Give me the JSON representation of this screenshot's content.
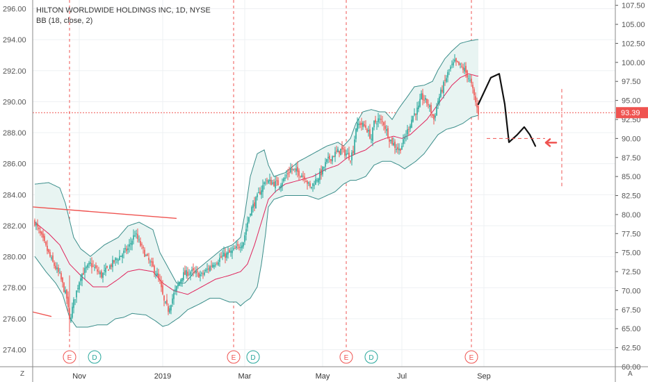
{
  "chart_data": {
    "type": "candlestick",
    "title": "HILTON WORLDWIDE HOLDINGS INC, 1D, NYSE",
    "indicator": "BB (18, close, 2)",
    "left_axis": {
      "range": [
        273.0,
        297.0
      ],
      "ticks": [
        "296.00",
        "294.00",
        "292.00",
        "290.00",
        "288.00",
        "286.00",
        "284.00",
        "282.00",
        "280.00",
        "278.00",
        "276.00",
        "274.00"
      ]
    },
    "right_axis": {
      "range": [
        60.0,
        108.2
      ],
      "ticks": [
        "107.50",
        "105.00",
        "102.50",
        "100.00",
        "97.50",
        "95.00",
        "92.50",
        "90.00",
        "87.50",
        "85.00",
        "82.50",
        "80.00",
        "77.50",
        "75.00",
        "72.50",
        "70.00",
        "67.50",
        "65.00",
        "62.50",
        "60.00"
      ]
    },
    "price_label": "93.39",
    "x_ticks": [
      "Nov",
      "2019",
      "Mar",
      "May",
      "Jul",
      "Sep"
    ],
    "events": [
      "E",
      "D",
      "E",
      "D",
      "E",
      "D",
      "E"
    ],
    "corner_left": "Z",
    "corner_right": "A",
    "price_anchors": [
      [
        0,
        79.0
      ],
      [
        5,
        77.0
      ],
      [
        12,
        74.0
      ],
      [
        18,
        72.0
      ],
      [
        23,
        69.0
      ],
      [
        25,
        66.0
      ],
      [
        28,
        68.5
      ],
      [
        33,
        72.0
      ],
      [
        40,
        73.5
      ],
      [
        48,
        72.0
      ],
      [
        58,
        74.0
      ],
      [
        67,
        75.5
      ],
      [
        72,
        77.5
      ],
      [
        80,
        74.5
      ],
      [
        85,
        73.0
      ],
      [
        88,
        72.0
      ],
      [
        90,
        71.0
      ],
      [
        93,
        68.5
      ],
      [
        96,
        67.5
      ],
      [
        100,
        69.5
      ],
      [
        106,
        72.0
      ],
      [
        112,
        72.5
      ],
      [
        120,
        72.0
      ],
      [
        128,
        73.5
      ],
      [
        135,
        74.5
      ],
      [
        141,
        75.0
      ],
      [
        145,
        75.5
      ],
      [
        150,
        76.5
      ],
      [
        153,
        79.0
      ],
      [
        155,
        80.5
      ],
      [
        158,
        81.5
      ],
      [
        162,
        83.0
      ],
      [
        166,
        84.5
      ],
      [
        170,
        84.2
      ],
      [
        176,
        84.0
      ],
      [
        180,
        84.8
      ],
      [
        184,
        86.0
      ],
      [
        190,
        85.5
      ],
      [
        194,
        85.0
      ],
      [
        198,
        83.5
      ],
      [
        202,
        84.5
      ],
      [
        206,
        85.5
      ],
      [
        210,
        87.0
      ],
      [
        216,
        88.0
      ],
      [
        220,
        88.5
      ],
      [
        224,
        88.0
      ],
      [
        227,
        87.5
      ],
      [
        229,
        88.5
      ],
      [
        231,
        91.5
      ],
      [
        234,
        92.0
      ],
      [
        238,
        91.5
      ],
      [
        242,
        90.0
      ],
      [
        244,
        92.0
      ],
      [
        247,
        92.5
      ],
      [
        251,
        92.0
      ],
      [
        255,
        90.0
      ],
      [
        259,
        89.0
      ],
      [
        262,
        88.5
      ],
      [
        265,
        89.5
      ],
      [
        269,
        91.5
      ],
      [
        272,
        93.0
      ],
      [
        276,
        94.0
      ],
      [
        278,
        95.5
      ],
      [
        283,
        94.5
      ],
      [
        287,
        92.5
      ],
      [
        290,
        95.0
      ],
      [
        294,
        97.0
      ],
      [
        298,
        99.0
      ],
      [
        302,
        100.0
      ],
      [
        306,
        99.5
      ],
      [
        309,
        99.0
      ],
      [
        312,
        98.0
      ],
      [
        314,
        97.0
      ],
      [
        316,
        95.5
      ],
      [
        318,
        94.0
      ],
      [
        319,
        93.39
      ]
    ],
    "bb_upper": [
      [
        0,
        84.0
      ],
      [
        10,
        84.2
      ],
      [
        18,
        83.5
      ],
      [
        22,
        81.5
      ],
      [
        28,
        77.0
      ],
      [
        33,
        75.5
      ],
      [
        40,
        74.5
      ],
      [
        50,
        76.0
      ],
      [
        60,
        77.0
      ],
      [
        67,
        78.5
      ],
      [
        75,
        79.0
      ],
      [
        85,
        78.0
      ],
      [
        90,
        75.0
      ],
      [
        96,
        73.0
      ],
      [
        102,
        71.0
      ],
      [
        108,
        71.0
      ],
      [
        115,
        72.5
      ],
      [
        125,
        74.0
      ],
      [
        135,
        75.5
      ],
      [
        142,
        76.0
      ],
      [
        148,
        77.0
      ],
      [
        151,
        80.0
      ],
      [
        155,
        85.0
      ],
      [
        160,
        88.0
      ],
      [
        165,
        88.5
      ],
      [
        168,
        86.5
      ],
      [
        172,
        85.0
      ],
      [
        180,
        85.5
      ],
      [
        190,
        87.0
      ],
      [
        200,
        88.0
      ],
      [
        210,
        89.0
      ],
      [
        218,
        89.5
      ],
      [
        222,
        89.0
      ],
      [
        227,
        90.0
      ],
      [
        231,
        92.0
      ],
      [
        236,
        93.5
      ],
      [
        242,
        93.8
      ],
      [
        248,
        93.5
      ],
      [
        252,
        93.5
      ],
      [
        257,
        92.5
      ],
      [
        262,
        94.0
      ],
      [
        268,
        95.5
      ],
      [
        273,
        96.8
      ],
      [
        280,
        97.0
      ],
      [
        286,
        97.5
      ],
      [
        290,
        99.0
      ],
      [
        295,
        100.5
      ],
      [
        300,
        101.5
      ],
      [
        306,
        102.5
      ],
      [
        312,
        102.8
      ],
      [
        318,
        103.0
      ]
    ],
    "bb_lower": [
      [
        0,
        74.5
      ],
      [
        8,
        72.5
      ],
      [
        15,
        71.0
      ],
      [
        20,
        69.5
      ],
      [
        25,
        66.5
      ],
      [
        30,
        65.2
      ],
      [
        38,
        65.2
      ],
      [
        45,
        65.5
      ],
      [
        52,
        65.5
      ],
      [
        58,
        66.3
      ],
      [
        64,
        66.5
      ],
      [
        70,
        67.0
      ],
      [
        80,
        66.8
      ],
      [
        87,
        66.0
      ],
      [
        92,
        65.3
      ],
      [
        96,
        65.5
      ],
      [
        104,
        66.5
      ],
      [
        110,
        67.5
      ],
      [
        118,
        68.2
      ],
      [
        126,
        69.0
      ],
      [
        133,
        69.0
      ],
      [
        140,
        68.5
      ],
      [
        145,
        68.5
      ],
      [
        148,
        68.0
      ],
      [
        151,
        68.5
      ],
      [
        155,
        69.0
      ],
      [
        160,
        70.5
      ],
      [
        163,
        73.5
      ],
      [
        166,
        77.5
      ],
      [
        168,
        81.0
      ],
      [
        172,
        82.0
      ],
      [
        180,
        82.5
      ],
      [
        188,
        82.5
      ],
      [
        196,
        82.5
      ],
      [
        204,
        82.0
      ],
      [
        210,
        82.5
      ],
      [
        216,
        83.0
      ],
      [
        222,
        84.0
      ],
      [
        227,
        84.5
      ],
      [
        231,
        84.5
      ],
      [
        238,
        85.0
      ],
      [
        244,
        86.5
      ],
      [
        250,
        87.0
      ],
      [
        256,
        87.0
      ],
      [
        262,
        86.5
      ],
      [
        266,
        86.0
      ],
      [
        270,
        86.5
      ],
      [
        274,
        87.0
      ],
      [
        280,
        88.0
      ],
      [
        286,
        89.5
      ],
      [
        290,
        90.5
      ],
      [
        296,
        91.2
      ],
      [
        302,
        91.5
      ],
      [
        308,
        92.0
      ],
      [
        314,
        92.8
      ],
      [
        318,
        93.0
      ]
    ],
    "bb_middle": [
      [
        0,
        79.0
      ],
      [
        10,
        77.5
      ],
      [
        18,
        76.0
      ],
      [
        25,
        73.5
      ],
      [
        33,
        72.0
      ],
      [
        42,
        70.5
      ],
      [
        52,
        70.5
      ],
      [
        60,
        71.5
      ],
      [
        67,
        72.5
      ],
      [
        75,
        72.8
      ],
      [
        85,
        72.5
      ],
      [
        92,
        71.0
      ],
      [
        100,
        70.0
      ],
      [
        110,
        69.5
      ],
      [
        120,
        70.5
      ],
      [
        130,
        71.5
      ],
      [
        140,
        72.0
      ],
      [
        148,
        72.5
      ],
      [
        153,
        73.5
      ],
      [
        158,
        76.0
      ],
      [
        163,
        79.0
      ],
      [
        168,
        82.0
      ],
      [
        173,
        83.0
      ],
      [
        180,
        84.0
      ],
      [
        190,
        84.5
      ],
      [
        200,
        85.0
      ],
      [
        210,
        86.0
      ],
      [
        218,
        86.5
      ],
      [
        225,
        87.5
      ],
      [
        231,
        88.0
      ],
      [
        238,
        88.5
      ],
      [
        245,
        89.5
      ],
      [
        252,
        90.0
      ],
      [
        258,
        90.3
      ],
      [
        264,
        90.0
      ],
      [
        270,
        90.5
      ],
      [
        276,
        91.5
      ],
      [
        282,
        92.5
      ],
      [
        288,
        94.0
      ],
      [
        294,
        95.5
      ],
      [
        300,
        97.0
      ],
      [
        306,
        98.0
      ],
      [
        312,
        98.5
      ],
      [
        318,
        98.2
      ]
    ],
    "resistance_line": {
      "x": [
        0,
        102
      ],
      "y": [
        81.0,
        79.5
      ]
    },
    "short_segment": {
      "x": [
        0,
        12
      ],
      "y": [
        67.2,
        66.6
      ]
    },
    "horizontal_price_line": 93.39,
    "target_level": 90.0,
    "projection_path": [
      [
        319,
        94.5
      ],
      [
        328,
        98.0
      ],
      [
        334,
        98.5
      ],
      [
        338,
        94.5
      ],
      [
        341,
        89.5
      ],
      [
        347,
        90.5
      ],
      [
        352,
        91.5
      ],
      [
        356,
        90.5
      ],
      [
        360,
        89.0
      ]
    ]
  },
  "colors": {
    "bb_band": "#3a8d8a",
    "bb_fill": "#e8f4f2",
    "bb_mid": "#e0245c",
    "candle_up": "#26a69a",
    "candle_down": "#ef5350",
    "event_line": "#ef5350",
    "dividend": "#26a69a",
    "price_label_bg": "#ef5350"
  }
}
